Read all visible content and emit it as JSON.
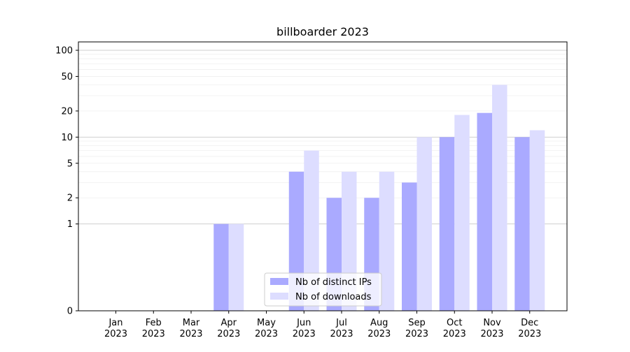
{
  "chart_data": {
    "type": "bar",
    "title": "billboarder 2023",
    "xlabel": "",
    "ylabel": "",
    "y_scale": "symlog",
    "ylim": [
      0,
      120
    ],
    "y_ticks": [
      0,
      1,
      2,
      5,
      10,
      20,
      50,
      100
    ],
    "categories": [
      [
        "Jan",
        "2023"
      ],
      [
        "Feb",
        "2023"
      ],
      [
        "Mar",
        "2023"
      ],
      [
        "Apr",
        "2023"
      ],
      [
        "May",
        "2023"
      ],
      [
        "Jun",
        "2023"
      ],
      [
        "Jul",
        "2023"
      ],
      [
        "Aug",
        "2023"
      ],
      [
        "Sep",
        "2023"
      ],
      [
        "Oct",
        "2023"
      ],
      [
        "Nov",
        "2023"
      ],
      [
        "Dec",
        "2023"
      ]
    ],
    "series": [
      {
        "name": "Nb of distinct IPs",
        "color": "#aaaaff",
        "values": [
          0,
          0,
          0,
          1,
          0,
          4,
          2,
          2,
          3,
          10,
          19,
          10
        ]
      },
      {
        "name": "Nb of downloads",
        "color": "#ddddff",
        "values": [
          0,
          0,
          0,
          1,
          0,
          7,
          4,
          4,
          10,
          18,
          40,
          12
        ]
      }
    ],
    "grid": true,
    "legend_position": "lower-center"
  }
}
